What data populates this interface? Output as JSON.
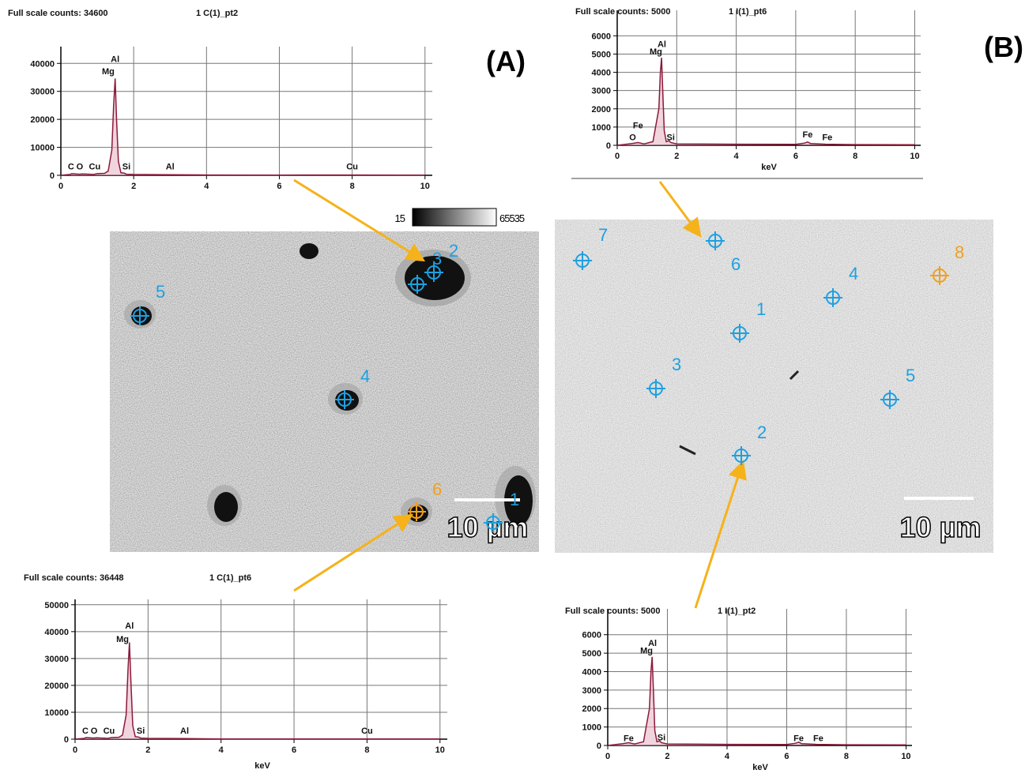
{
  "chart_data": [
    {
      "type": "line",
      "title": "Full scale counts: 34600",
      "subtitle": "1 C(1)_pt2",
      "x": [
        0,
        0.25,
        0.3,
        0.5,
        0.6,
        0.9,
        1.0,
        1.2,
        1.3,
        1.4,
        1.45,
        1.49,
        1.53,
        1.58,
        1.65,
        1.74,
        1.8,
        2,
        3,
        4,
        6,
        8,
        10
      ],
      "series": [
        {
          "color": "#8b1a3a",
          "values": [
            0,
            300,
            600,
            400,
            500,
            300,
            600,
            700,
            1500,
            9000,
            25000,
            34600,
            20000,
            5000,
            900,
            800,
            400,
            300,
            200,
            100,
            80,
            100,
            50
          ]
        }
      ],
      "xlim": [
        0,
        10.2
      ],
      "ylim": [
        0,
        46000
      ],
      "xticks": [
        0,
        2,
        4,
        6,
        8,
        10
      ],
      "yticks": [
        0,
        10000,
        20000,
        30000,
        40000
      ],
      "grid": true,
      "annotations": [
        {
          "text": "Al",
          "x": 1.49,
          "y": 40000
        },
        {
          "text": "Mg",
          "x": 1.3,
          "y": 35500
        },
        {
          "text": "C",
          "x": 0.28,
          "y": 1500
        },
        {
          "text": "O",
          "x": 0.52,
          "y": 1500
        },
        {
          "text": "Cu",
          "x": 0.93,
          "y": 1500
        },
        {
          "text": "Si",
          "x": 1.8,
          "y": 1500
        },
        {
          "text": "Al",
          "x": 3,
          "y": 1500
        },
        {
          "text": "Cu",
          "x": 8,
          "y": 1500
        }
      ]
    },
    {
      "type": "line",
      "title": "Full scale counts: 5000",
      "subtitle": "1 I(1)_pt6",
      "xlabel": "keV",
      "x": [
        0,
        0.5,
        0.7,
        0.9,
        1.2,
        1.4,
        1.45,
        1.49,
        1.53,
        1.58,
        1.65,
        1.74,
        1.8,
        2,
        4,
        6,
        6.3,
        6.4,
        6.5,
        7,
        8,
        10
      ],
      "series": [
        {
          "color": "#8b1a3a",
          "values": [
            0,
            100,
            150,
            80,
            200,
            2000,
            4000,
            4800,
            3000,
            800,
            200,
            250,
            150,
            80,
            60,
            50,
            120,
            180,
            100,
            60,
            40,
            30
          ]
        }
      ],
      "xlim": [
        0,
        10.2
      ],
      "ylim": [
        0,
        7400
      ],
      "xticks": [
        0,
        2,
        4,
        6,
        8,
        10
      ],
      "yticks": [
        0,
        1000,
        2000,
        3000,
        4000,
        5000,
        6000
      ],
      "grid": true,
      "annotations": [
        {
          "text": "Al",
          "x": 1.5,
          "y": 5300
        },
        {
          "text": "Mg",
          "x": 1.3,
          "y": 4900
        },
        {
          "text": "Fe",
          "x": 0.7,
          "y": 850
        },
        {
          "text": "O",
          "x": 0.52,
          "y": 200
        },
        {
          "text": "Si",
          "x": 1.8,
          "y": 200
        },
        {
          "text": "Fe",
          "x": 6.4,
          "y": 350
        },
        {
          "text": "Fe",
          "x": 7.06,
          "y": 200
        }
      ]
    },
    {
      "type": "line",
      "title": "Full scale counts: 36448",
      "subtitle": "1 C(1)_pt6",
      "xlabel": "keV",
      "x": [
        0,
        0.25,
        0.3,
        0.5,
        0.6,
        0.9,
        1.0,
        1.2,
        1.3,
        1.4,
        1.45,
        1.49,
        1.53,
        1.58,
        1.65,
        1.74,
        1.8,
        2,
        3,
        4,
        6,
        8,
        10
      ],
      "series": [
        {
          "color": "#8b1a3a",
          "values": [
            0,
            300,
            600,
            400,
            500,
            300,
            600,
            700,
            1500,
            9000,
            26000,
            36000,
            21000,
            5000,
            900,
            800,
            400,
            300,
            200,
            100,
            80,
            100,
            50
          ]
        }
      ],
      "xlim": [
        0,
        10.2
      ],
      "ylim": [
        0,
        52000
      ],
      "xticks": [
        0,
        2,
        4,
        6,
        8,
        10
      ],
      "yticks": [
        0,
        10000,
        20000,
        30000,
        40000,
        50000
      ],
      "grid": true,
      "annotations": [
        {
          "text": "Al",
          "x": 1.49,
          "y": 40500
        },
        {
          "text": "Mg",
          "x": 1.3,
          "y": 35500
        },
        {
          "text": "C",
          "x": 0.28,
          "y": 1500
        },
        {
          "text": "O",
          "x": 0.52,
          "y": 1500
        },
        {
          "text": "Cu",
          "x": 0.93,
          "y": 1500
        },
        {
          "text": "Si",
          "x": 1.8,
          "y": 1500
        },
        {
          "text": "Al",
          "x": 3,
          "y": 1500
        },
        {
          "text": "Cu",
          "x": 8,
          "y": 1500
        }
      ]
    },
    {
      "type": "line",
      "title": "Full scale counts: 5000",
      "subtitle": "1 I(1)_pt2",
      "xlabel": "keV",
      "x": [
        0,
        0.5,
        0.7,
        0.9,
        1.2,
        1.4,
        1.45,
        1.49,
        1.53,
        1.58,
        1.65,
        1.74,
        1.8,
        2,
        4,
        6,
        6.3,
        6.4,
        6.5,
        7,
        8,
        10
      ],
      "series": [
        {
          "color": "#8b1a3a",
          "values": [
            0,
            100,
            150,
            80,
            200,
            2000,
            4000,
            4800,
            3000,
            800,
            200,
            250,
            150,
            80,
            60,
            50,
            120,
            180,
            100,
            60,
            40,
            30
          ]
        }
      ],
      "xlim": [
        0,
        10.2
      ],
      "ylim": [
        0,
        7400
      ],
      "xticks": [
        0,
        2,
        4,
        6,
        8,
        10
      ],
      "yticks": [
        0,
        1000,
        2000,
        3000,
        4000,
        5000,
        6000
      ],
      "grid": true,
      "annotations": [
        {
          "text": "Al",
          "x": 1.5,
          "y": 5300
        },
        {
          "text": "Mg",
          "x": 1.3,
          "y": 4900
        },
        {
          "text": "Fe",
          "x": 0.7,
          "y": 150
        },
        {
          "text": "Si",
          "x": 1.8,
          "y": 200
        },
        {
          "text": "Fe",
          "x": 6.4,
          "y": 150
        },
        {
          "text": "Fe",
          "x": 7.06,
          "y": 150
        }
      ]
    }
  ],
  "images": [
    {
      "label": "(A)",
      "scale_bar": "10 µm",
      "colorbar": [
        15,
        65535
      ],
      "markers": [
        "1",
        "2",
        "3",
        "4",
        "5",
        "6"
      ]
    },
    {
      "label": "(B)",
      "scale_bar": "10 µm",
      "markers": [
        "1",
        "2",
        "3",
        "4",
        "5",
        "6",
        "7",
        "8"
      ]
    }
  ]
}
